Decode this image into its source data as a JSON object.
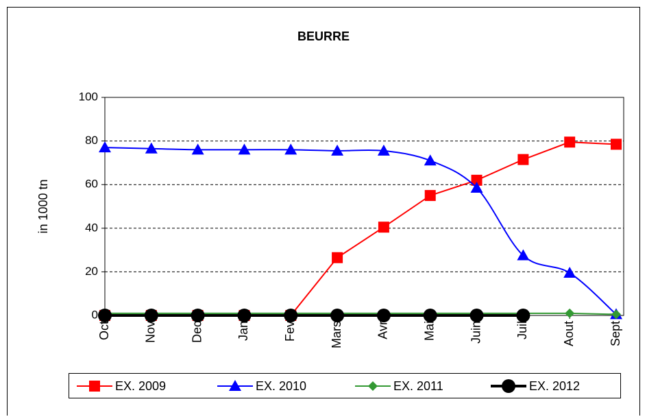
{
  "chart_data": {
    "type": "line",
    "title": "BEURRE",
    "y_label": "in 1000 tn",
    "categories": [
      "Oct",
      "Nov",
      "Dec",
      "Jan",
      "Fev",
      "Mars",
      "Avr",
      "Mai",
      "Juin",
      "Juil",
      "Aout",
      "Sept"
    ],
    "series": [
      {
        "name": "EX. 2009",
        "color": "#ff0000",
        "marker": "square",
        "values": [
          0,
          0,
          0,
          0,
          0,
          26.5,
          40.5,
          55,
          62,
          71.5,
          79.5,
          78.5
        ]
      },
      {
        "name": "EX. 2010",
        "color": "#0000ff",
        "marker": "triangle",
        "smooth": true,
        "values": [
          77,
          76.5,
          76,
          76,
          76,
          75.5,
          75.5,
          71,
          58.5,
          27.5,
          19.5,
          0.5
        ]
      },
      {
        "name": "EX. 2011",
        "color": "#339933",
        "marker": "diamond",
        "values": [
          1,
          1,
          1,
          1,
          1,
          1,
          1,
          1,
          1,
          1,
          1,
          0.5
        ]
      },
      {
        "name": "EX. 2012",
        "color": "#000000",
        "marker": "circle",
        "values": [
          0,
          0,
          0,
          0,
          0,
          0,
          0,
          0,
          0,
          0,
          null,
          null
        ]
      }
    ],
    "ylim": [
      0,
      100
    ],
    "yticks": [
      0,
      20,
      40,
      60,
      80,
      100
    ],
    "grid": true,
    "legend": "bottom"
  }
}
